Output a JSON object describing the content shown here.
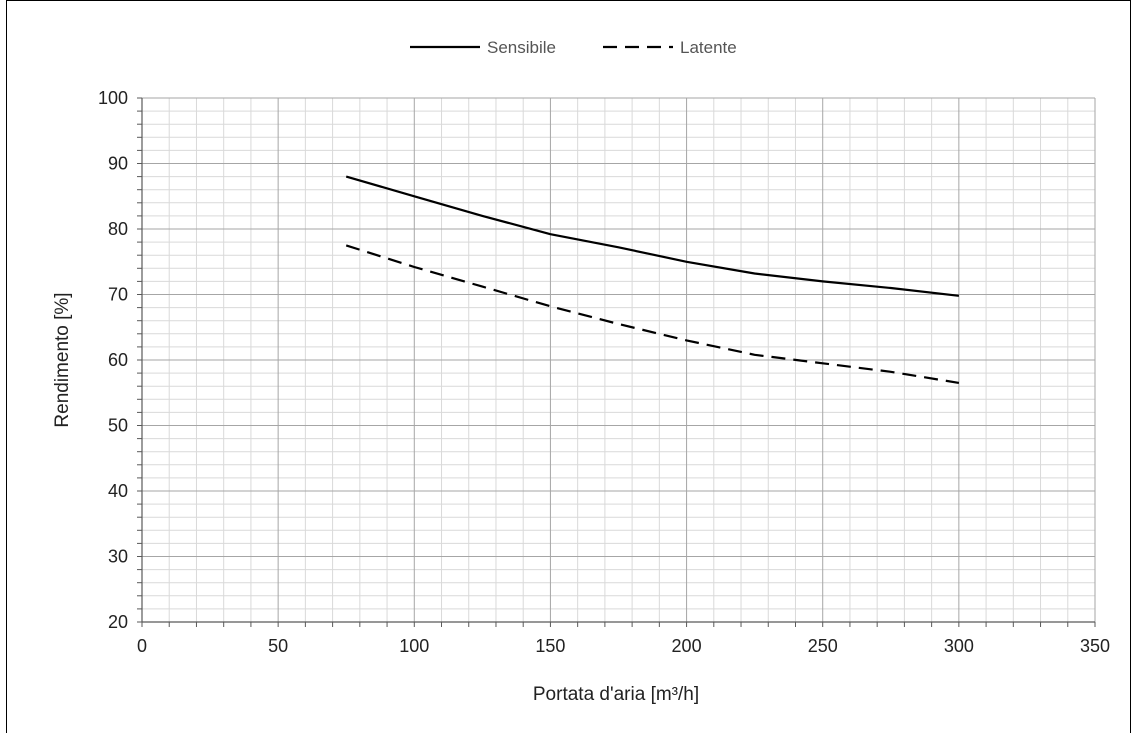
{
  "chart_data": {
    "type": "line",
    "xlabel": "Portata d'aria [m³/h]",
    "ylabel": "Rendimento [%]",
    "xlim": [
      0,
      350
    ],
    "ylim": [
      20,
      100
    ],
    "xticks": [
      0,
      50,
      100,
      150,
      200,
      250,
      300,
      350
    ],
    "yticks": [
      20,
      30,
      40,
      50,
      60,
      70,
      80,
      90,
      100
    ],
    "grid": true,
    "legend_position": "top-center",
    "series": [
      {
        "name": "Sensibile",
        "style": "solid",
        "color": "#000000",
        "x": [
          75,
          100,
          125,
          150,
          175,
          200,
          225,
          250,
          275,
          300
        ],
        "y": [
          88,
          85,
          82,
          79.2,
          77.2,
          75,
          73.2,
          72,
          71,
          69.8
        ]
      },
      {
        "name": "Latente",
        "style": "dashed",
        "color": "#000000",
        "x": [
          75,
          100,
          125,
          150,
          175,
          200,
          225,
          250,
          275,
          300
        ],
        "y": [
          77.5,
          74.2,
          71.2,
          68.2,
          65.5,
          63,
          60.8,
          59.5,
          58.2,
          56.5
        ]
      }
    ]
  }
}
